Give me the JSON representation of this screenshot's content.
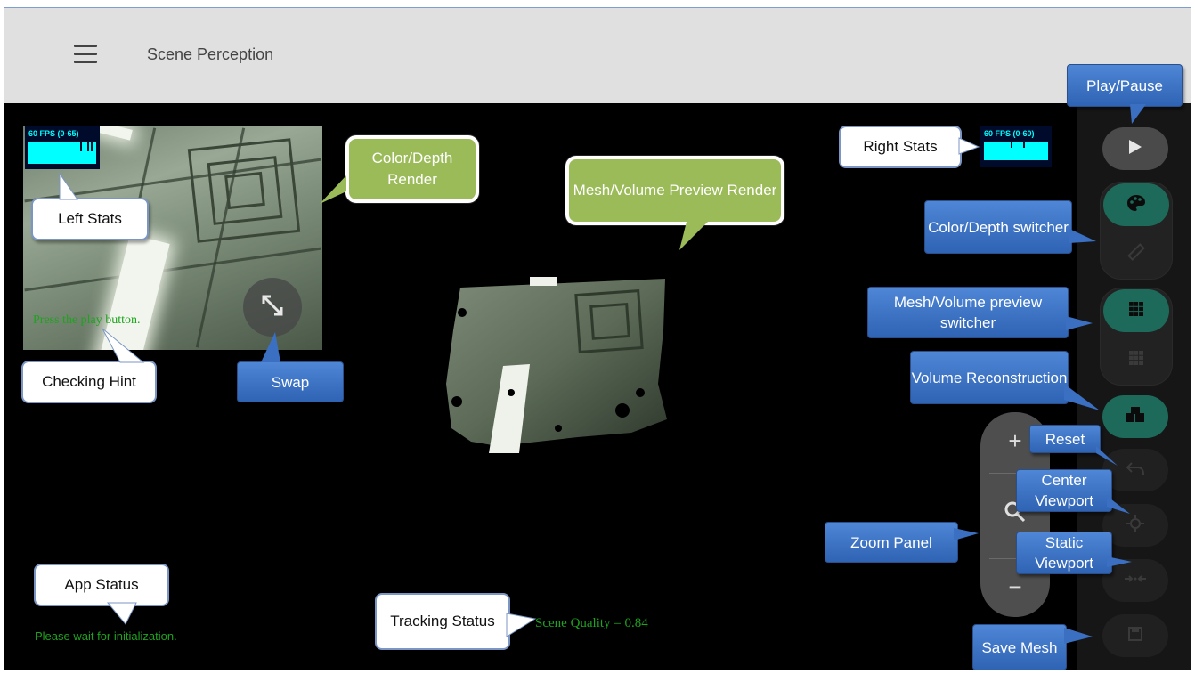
{
  "app": {
    "title": "Scene Perception"
  },
  "left_panel": {
    "stats_label": "60 FPS (0-65)",
    "checking_hint": "Press the play button."
  },
  "right_stats": {
    "stats_label": "60 FPS (0-60)"
  },
  "status": {
    "tracking": "Scene Quality = 0.84",
    "app": "Please wait for initialization."
  },
  "zoom": {
    "plus": "+",
    "minus": "−"
  },
  "colors": {
    "appbar": "#e0e0e0",
    "status_text": "#1ea31e",
    "stats_cyan": "#00ffff",
    "teal_active": "#1d6a5a",
    "callout_blue": "#3b6fc1",
    "callout_green": "#9bbb59"
  },
  "icons": {
    "menu": "hamburger-icon",
    "swap": "swap-arrows-icon",
    "play": "play-icon",
    "color": "palette-icon",
    "depth": "ruler-icon",
    "mesh": "grid-icon",
    "volume": "grid-icon",
    "reconstruction": "cubes-icon",
    "reset": "undo-icon",
    "center": "target-icon",
    "static": "arrows-in-icon",
    "save": "save-icon",
    "zoom": "search-icon"
  },
  "callouts": {
    "play_pause": "Play/Pause",
    "right_stats": "Right Stats",
    "color_depth_render": "Color/Depth Render",
    "mesh_volume_render": "Mesh/Volume Preview Render",
    "left_stats": "Left Stats",
    "color_depth_switcher": "Color/Depth switcher",
    "mesh_volume_switcher": "Mesh/Volume preview switcher",
    "volume_reconstruction": "Volume Reconstruction",
    "checking_hint": "Checking Hint",
    "swap": "Swap",
    "reset": "Reset",
    "center_viewport": "Center Viewport",
    "zoom_panel": "Zoom Panel",
    "static_viewport": "Static Viewport",
    "app_status": "App Status",
    "tracking_status": "Tracking Status",
    "save_mesh": "Save Mesh"
  }
}
